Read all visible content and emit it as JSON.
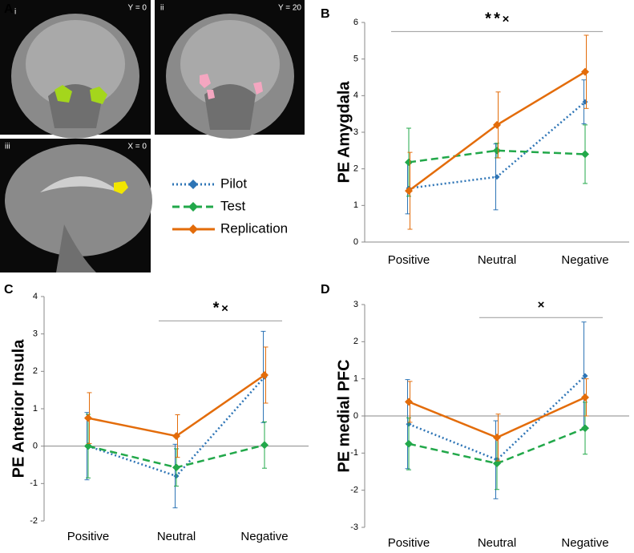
{
  "brain_panels": {
    "main_label": "A",
    "images": [
      {
        "label": "i",
        "coordinate": "Y = 0"
      },
      {
        "label": "ii",
        "coordinate": "Y = 20"
      },
      {
        "label": "iii",
        "coordinate": "X = 0"
      }
    ]
  },
  "chart_data": [
    {
      "type": "line",
      "panel_label": "B",
      "y_label": "PE Amygdala",
      "categories": [
        "Positive",
        "Neutral",
        "Negative"
      ],
      "ylim": [
        0,
        6
      ],
      "yticks": [
        0,
        1,
        2,
        3,
        4,
        5,
        6
      ],
      "zero_line": false,
      "series": [
        {
          "name": "Pilot",
          "color": "#2e75b6",
          "line_style": "dotted",
          "values": [
            1.47,
            1.78,
            3.83
          ],
          "errors": [
            0.7,
            0.9,
            0.6
          ]
        },
        {
          "name": "Test",
          "color": "#22a84a",
          "line_style": "dashed",
          "values": [
            2.18,
            2.5,
            2.4
          ],
          "errors": [
            0.93,
            0.2,
            0.8
          ]
        },
        {
          "name": "Replication",
          "color": "#e36c0a",
          "line_style": "solid",
          "values": [
            1.4,
            3.2,
            4.65
          ],
          "errors": [
            1.05,
            0.9,
            1.0
          ]
        }
      ],
      "significance": {
        "y": 5.75,
        "span": [
          "Positive",
          "Negative"
        ],
        "marks": [
          {
            "text": "*",
            "color": "#2e75b6"
          },
          {
            "text": "*",
            "color": "#e36c0a"
          },
          {
            "text": "×",
            "color": "#000000"
          }
        ]
      }
    },
    {
      "type": "line",
      "panel_label": "C",
      "y_label": "PE Anterior Insula",
      "categories": [
        "Positive",
        "Neutral",
        "Negative"
      ],
      "ylim": [
        -2,
        4
      ],
      "yticks": [
        -2,
        -1,
        0,
        1,
        2,
        3,
        4
      ],
      "zero_line": true,
      "series": [
        {
          "name": "Pilot",
          "color": "#2e75b6",
          "line_style": "dotted",
          "values": [
            0.0,
            -0.8,
            1.85
          ],
          "errors": [
            0.9,
            0.85,
            1.22
          ]
        },
        {
          "name": "Test",
          "color": "#22a84a",
          "line_style": "dashed",
          "values": [
            0.0,
            -0.57,
            0.03
          ],
          "errors": [
            0.85,
            0.5,
            0.62
          ]
        },
        {
          "name": "Replication",
          "color": "#e36c0a",
          "line_style": "solid",
          "values": [
            0.75,
            0.27,
            1.9
          ],
          "errors": [
            0.68,
            0.57,
            0.75
          ]
        }
      ],
      "significance": {
        "y": 3.35,
        "span": [
          "Neutral",
          "Negative"
        ],
        "marks": [
          {
            "text": "*",
            "color": "#e36c0a"
          },
          {
            "text": "×",
            "color": "#000000"
          }
        ]
      }
    },
    {
      "type": "line",
      "panel_label": "D",
      "y_label": "PE medial PFC",
      "categories": [
        "Positive",
        "Neutral",
        "Negative"
      ],
      "ylim": [
        -3,
        3
      ],
      "yticks": [
        -3,
        -2,
        -1,
        0,
        1,
        2,
        3
      ],
      "zero_line": true,
      "series": [
        {
          "name": "Pilot",
          "color": "#2e75b6",
          "line_style": "dotted",
          "values": [
            -0.22,
            -1.18,
            1.08
          ],
          "errors": [
            1.2,
            1.05,
            1.45
          ]
        },
        {
          "name": "Test",
          "color": "#22a84a",
          "line_style": "dashed",
          "values": [
            -0.75,
            -1.28,
            -0.33
          ],
          "errors": [
            0.7,
            0.7,
            0.7
          ]
        },
        {
          "name": "Replication",
          "color": "#e36c0a",
          "line_style": "solid",
          "values": [
            0.38,
            -0.58,
            0.5
          ],
          "errors": [
            0.55,
            0.63,
            0.5
          ]
        }
      ],
      "significance": {
        "y": 2.65,
        "span": [
          "Neutral",
          "Negative"
        ],
        "marks": [
          {
            "text": "×",
            "color": "#000000"
          }
        ]
      }
    }
  ]
}
